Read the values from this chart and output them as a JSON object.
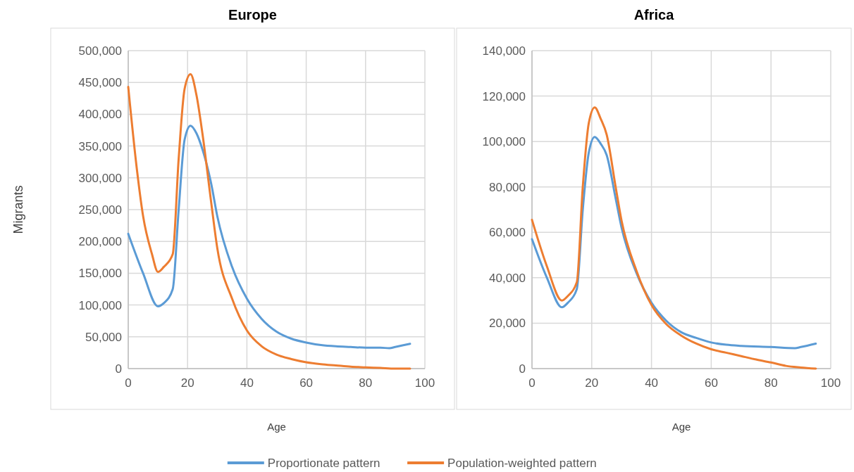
{
  "chart_data": [
    {
      "type": "line",
      "title": "Europe",
      "xlabel": "Age",
      "ylabel": "Migrants",
      "xlim": [
        0,
        100
      ],
      "xticks": [
        0,
        20,
        40,
        60,
        80,
        100
      ],
      "ylim": [
        0,
        500000
      ],
      "yticks": [
        {
          "value": 0,
          "label": "0"
        },
        {
          "value": 50000,
          "label": "50,000"
        },
        {
          "value": 100000,
          "label": "100,000"
        },
        {
          "value": 150000,
          "label": "150,000"
        },
        {
          "value": 200000,
          "label": "200,000"
        },
        {
          "value": 250000,
          "label": "250,000"
        },
        {
          "value": 300000,
          "label": "300,000"
        },
        {
          "value": 350000,
          "label": "350,000"
        },
        {
          "value": 400000,
          "label": "400,000"
        },
        {
          "value": 450000,
          "label": "450,000"
        },
        {
          "value": 500000,
          "label": "500,000"
        }
      ],
      "grid": true,
      "legend": "bottom",
      "line_style": "solid",
      "marker": "none",
      "series": [
        {
          "name": "Proportionate pattern",
          "color": "#5b9bd5",
          "x": [
            0,
            5,
            10,
            12,
            15,
            17,
            19,
            21,
            23,
            25,
            28,
            30,
            35,
            40,
            45,
            50,
            55,
            60,
            65,
            70,
            75,
            80,
            85,
            88,
            90,
            95
          ],
          "values": [
            212000,
            150000,
            98000,
            103000,
            125000,
            250000,
            360000,
            382000,
            370000,
            345000,
            290000,
            240000,
            160000,
            110000,
            78000,
            58000,
            47000,
            41000,
            37000,
            35000,
            34000,
            33000,
            33000,
            32000,
            34000,
            39000
          ]
        },
        {
          "name": "Population-weighted pattern",
          "color": "#ed7d31",
          "x": [
            0,
            3,
            5,
            8,
            10,
            12,
            15,
            17,
            19,
            21,
            23,
            25,
            28,
            30,
            35,
            40,
            45,
            50,
            55,
            60,
            65,
            70,
            75,
            80,
            85,
            90,
            95
          ],
          "values": [
            443000,
            310000,
            240000,
            180000,
            152000,
            160000,
            180000,
            330000,
            440000,
            463000,
            430000,
            370000,
            260000,
            190000,
            110000,
            60000,
            35000,
            22000,
            15000,
            10000,
            7000,
            5000,
            3000,
            2000,
            1000,
            0,
            0
          ]
        }
      ]
    },
    {
      "type": "line",
      "title": "Africa",
      "xlabel": "Age",
      "xlim": [
        0,
        100
      ],
      "xticks": [
        0,
        20,
        40,
        60,
        80,
        100
      ],
      "ylim": [
        0,
        140000
      ],
      "yticks": [
        {
          "value": 0,
          "label": "0"
        },
        {
          "value": 20000,
          "label": "20,000"
        },
        {
          "value": 40000,
          "label": "40,000"
        },
        {
          "value": 60000,
          "label": "60,000"
        },
        {
          "value": 80000,
          "label": "80,000"
        },
        {
          "value": 100000,
          "label": "100,000"
        },
        {
          "value": 120000,
          "label": "120,000"
        },
        {
          "value": 140000,
          "label": "140,000"
        }
      ],
      "grid": true,
      "line_style": "solid",
      "marker": "none",
      "series": [
        {
          "color": "#5b9bd5",
          "x": [
            0,
            5,
            10,
            12,
            15,
            17,
            19,
            21,
            23,
            25,
            28,
            30,
            35,
            40,
            45,
            50,
            55,
            60,
            65,
            70,
            80,
            88,
            90,
            95
          ],
          "values": [
            57000,
            40000,
            27000,
            29000,
            35000,
            70000,
            95000,
            102000,
            99000,
            94000,
            75000,
            62000,
            42000,
            29000,
            21000,
            16000,
            13500,
            11500,
            10500,
            10000,
            9500,
            9000,
            9500,
            11000
          ]
        },
        {
          "color": "#ed7d31",
          "x": [
            0,
            5,
            10,
            12,
            15,
            17,
            19,
            21,
            23,
            25,
            28,
            30,
            35,
            40,
            45,
            50,
            55,
            60,
            65,
            70,
            75,
            80,
            85,
            90,
            95
          ],
          "values": [
            65500,
            45000,
            30000,
            32000,
            38000,
            80000,
            108000,
            115000,
            110000,
            103000,
            80000,
            65000,
            43000,
            28000,
            19500,
            14500,
            11000,
            8500,
            7000,
            5500,
            4000,
            2700,
            1200,
            500,
            0
          ]
        }
      ]
    }
  ]
}
